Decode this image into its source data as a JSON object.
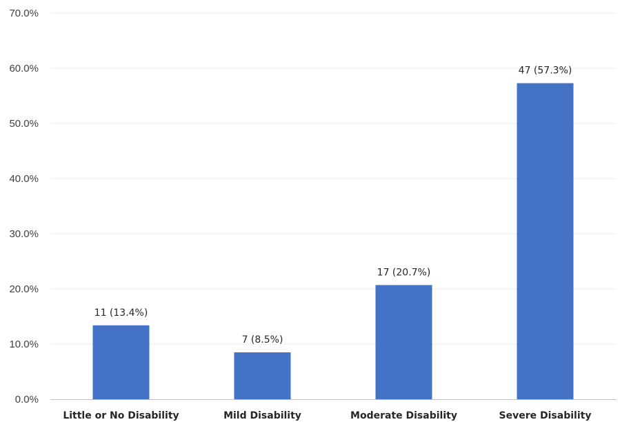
{
  "chart_data": {
    "type": "bar",
    "categories": [
      "Little or No Disability",
      "Mild Disability",
      "Moderate Disability",
      "Severe Disability"
    ],
    "values": [
      13.4,
      8.5,
      20.7,
      57.3
    ],
    "data_labels": [
      "11 (13.4%)",
      "7 (8.5%)",
      "17 (20.7%)",
      "47 (57.3%)"
    ],
    "ylim": [
      0,
      70
    ],
    "yticks": [
      0,
      10,
      20,
      30,
      40,
      50,
      60,
      70
    ],
    "ytick_labels": [
      "0.0%",
      "10.0%",
      "20.0%",
      "30.0%",
      "40.0%",
      "50.0%",
      "60.0%",
      "70.0%"
    ],
    "grid": true,
    "legend": "none",
    "colors": {
      "bar": "#4472C4",
      "grid": "#eeeeee",
      "axis": "#bfbfbf"
    }
  }
}
